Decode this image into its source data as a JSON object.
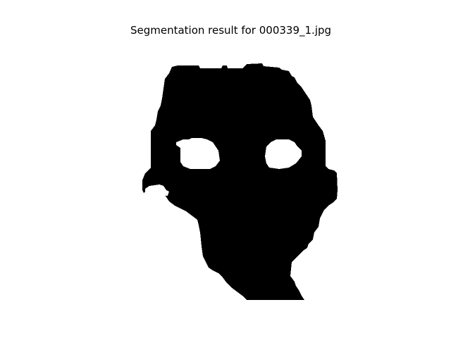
{
  "figure": {
    "title": "Segmentation result for 000339_1.jpg"
  },
  "mask": {
    "description_name": "binary segmentation mask",
    "foreground_color": "#000000",
    "background_color": "#ffffff"
  }
}
